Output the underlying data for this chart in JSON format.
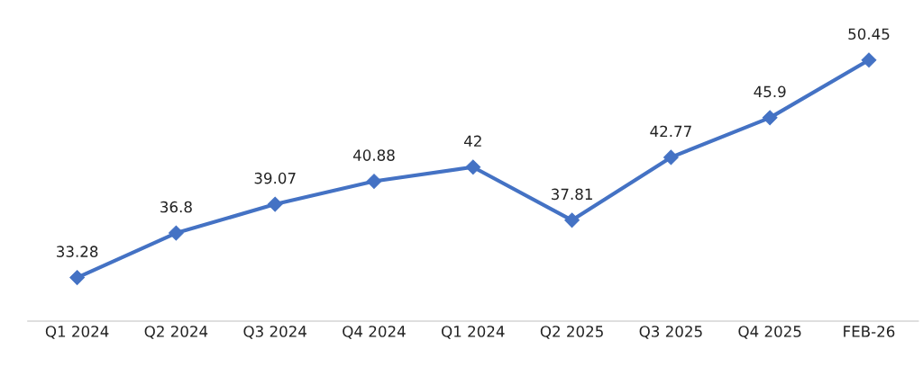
{
  "chart_data": {
    "type": "line",
    "categories": [
      "Q1 2024",
      "Q2 2024",
      "Q3 2024",
      "Q4 2024",
      "Q1 2024",
      "Q2 2025",
      "Q3 2025",
      "Q4 2025",
      "FEB-26"
    ],
    "series": [
      {
        "color": "#4472c4",
        "values": [
          33.28,
          36.8,
          39.07,
          40.88,
          42,
          37.81,
          42.77,
          45.9,
          50.45
        ]
      }
    ],
    "tick_labels": "x",
    "marker": "diamond",
    "line_style": "solid",
    "data_labels": true,
    "grid": false,
    "legend": false
  }
}
